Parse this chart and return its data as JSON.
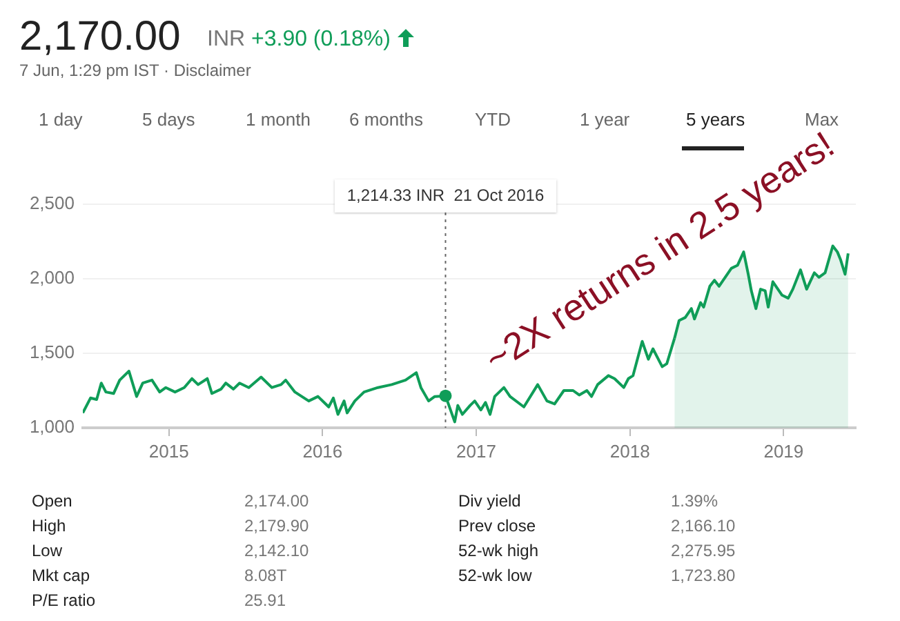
{
  "chart_data": {
    "type": "line",
    "title": "2,170.00",
    "subtitle": "INR +3.90 (0.18%)",
    "annotations": [
      "7 Jun, 1:29 pm IST · Disclaimer",
      "1 day",
      "5 days",
      "1 month",
      "6 months",
      "YTD",
      "1 year",
      "5 years",
      "Max",
      "1,214.33 INR  21 Oct 2016",
      "~2X returns in 2.5 years!",
      "Open",
      "2,174.00",
      "High",
      "2,179.90",
      "Low",
      "2,142.10",
      "Mkt cap",
      "8.08T",
      "P/E ratio",
      "25.91",
      "Div yield",
      "1.39%",
      "Prev close",
      "2,166.10",
      "52-wk high",
      "2,275.95",
      "52-wk low",
      "1,723.80"
    ],
    "series": [
      {
        "color": "#0f9d58",
        "x": [
          2014.44,
          2014.49,
          2014.53,
          2014.56,
          2014.59,
          2014.64,
          2014.68,
          2014.71,
          2014.74,
          2014.79,
          2014.83,
          2014.89,
          2014.94,
          2014.98,
          2015.04,
          2015.1,
          2015.15,
          2015.19,
          2015.25,
          2015.28,
          2015.34,
          2015.37,
          2015.42,
          2015.46,
          2015.52,
          2015.6,
          2015.67,
          2015.73,
          2015.76,
          2015.82,
          2015.91,
          2015.97,
          2016.01,
          2016.04,
          2016.07,
          2016.1,
          2016.14,
          2016.16,
          2016.21,
          2016.27,
          2016.36,
          2016.45,
          2016.54,
          2016.61,
          2016.64,
          2016.69,
          2016.73,
          2016.8,
          2016.86,
          2016.88,
          2016.91,
          2016.96,
          2016.99,
          2017.03,
          2017.06,
          2017.09,
          2017.12,
          2017.18,
          2017.22,
          2017.31,
          2017.4,
          2017.46,
          2017.51,
          2017.57,
          2017.63,
          2017.67,
          2017.72,
          2017.75,
          2017.79,
          2017.86,
          2017.9,
          2017.96,
          2017.99,
          2018.02,
          2018.08,
          2018.12,
          2018.15,
          2018.21,
          2018.24,
          2018.29
        ],
        "values": [
          1100,
          1200,
          1190,
          1300,
          1240,
          1230,
          1320,
          1350,
          1380,
          1210,
          1300,
          1320,
          1240,
          1270,
          1240,
          1270,
          1330,
          1290,
          1330,
          1230,
          1260,
          1300,
          1260,
          1300,
          1270,
          1340,
          1270,
          1290,
          1320,
          1240,
          1180,
          1210,
          1170,
          1140,
          1200,
          1090,
          1180,
          1100,
          1180,
          1240,
          1270,
          1290,
          1320,
          1370,
          1270,
          1180,
          1210,
          1214.33,
          1040,
          1150,
          1090,
          1150,
          1180,
          1120,
          1170,
          1090,
          1210,
          1270,
          1210,
          1140,
          1290,
          1180,
          1160,
          1250,
          1250,
          1220,
          1250,
          1210,
          1290,
          1350,
          1330,
          1270,
          1330,
          1350,
          1580,
          1460,
          1530,
          1410,
          1430,
          1600
        ]
      },
      {
        "type": "area",
        "color": "#0f9d58",
        "x": [
          2018.29,
          2018.32,
          2018.36,
          2018.4,
          2018.42,
          2018.46,
          2018.48,
          2018.52,
          2018.55,
          2018.58,
          2018.66,
          2018.7,
          2018.74,
          2018.77,
          2018.79,
          2018.82,
          2018.85,
          2018.88,
          2018.9,
          2018.93,
          2018.99,
          2019.03,
          2019.06,
          2019.11,
          2019.15,
          2019.2,
          2019.23,
          2019.27,
          2019.32,
          2019.35,
          2019.37,
          2019.4,
          2019.42
        ],
        "values": [
          1600,
          1720,
          1740,
          1800,
          1730,
          1840,
          1810,
          1950,
          1990,
          1950,
          2070,
          2090,
          2180,
          2030,
          1920,
          1800,
          1930,
          1920,
          1810,
          1980,
          1890,
          1870,
          1930,
          2060,
          1930,
          2040,
          2010,
          2040,
          2220,
          2180,
          2130,
          2030,
          2170
        ]
      }
    ],
    "xlim": [
      2014.44,
      2019.47
    ],
    "xticks": [
      2015,
      2016,
      2017,
      2018,
      2019
    ],
    "ylim": [
      1000,
      2500
    ],
    "yticks": [
      {
        "value": 1000,
        "label": "1,000"
      },
      {
        "value": 1500,
        "label": "1,500"
      },
      {
        "value": 2000,
        "label": "2,000"
      },
      {
        "value": 2500,
        "label": "2,500"
      }
    ],
    "grid": "y",
    "marker": "none",
    "line_style": "solid",
    "ref_lines": [
      {
        "axis": "x",
        "value": 2016.8,
        "line_style": "dotted",
        "color": "#666666"
      }
    ]
  }
}
